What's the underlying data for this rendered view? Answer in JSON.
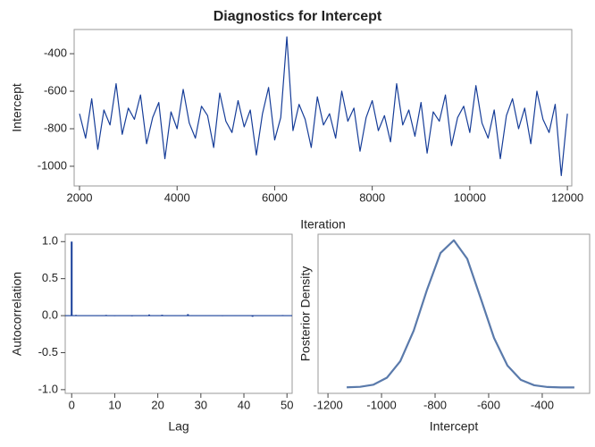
{
  "title": "Diagnostics for Intercept",
  "chart_data": [
    {
      "type": "line",
      "xlabel": "Iteration",
      "ylabel": "Intercept",
      "color": "#163d98",
      "x": [
        2000,
        2125,
        2250,
        2375,
        2500,
        2625,
        2750,
        2875,
        3000,
        3125,
        3250,
        3375,
        3500,
        3625,
        3750,
        3875,
        4000,
        4125,
        4250,
        4375,
        4500,
        4625,
        4750,
        4875,
        5000,
        5125,
        5250,
        5375,
        5500,
        5625,
        5750,
        5875,
        6000,
        6125,
        6250,
        6375,
        6500,
        6625,
        6750,
        6875,
        7000,
        7125,
        7250,
        7375,
        7500,
        7625,
        7750,
        7875,
        8000,
        8125,
        8250,
        8375,
        8500,
        8625,
        8750,
        8875,
        9000,
        9125,
        9250,
        9375,
        9500,
        9625,
        9750,
        9875,
        10000,
        10125,
        10250,
        10375,
        10500,
        10625,
        10750,
        10875,
        11000,
        11125,
        11250,
        11375,
        11500,
        11625,
        11750,
        11875,
        12000
      ],
      "values": [
        -720,
        -850,
        -640,
        -910,
        -700,
        -780,
        -560,
        -830,
        -690,
        -750,
        -620,
        -880,
        -740,
        -660,
        -960,
        -710,
        -800,
        -590,
        -770,
        -850,
        -680,
        -730,
        -900,
        -610,
        -760,
        -820,
        -650,
        -790,
        -700,
        -940,
        -720,
        -580,
        -860,
        -740,
        -310,
        -810,
        -670,
        -750,
        -900,
        -630,
        -780,
        -720,
        -850,
        -600,
        -760,
        -690,
        -920,
        -740,
        -650,
        -810,
        -730,
        -870,
        -560,
        -780,
        -700,
        -840,
        -660,
        -930,
        -710,
        -760,
        -620,
        -890,
        -740,
        -680,
        -820,
        -570,
        -770,
        -850,
        -700,
        -960,
        -730,
        -640,
        -800,
        -690,
        -880,
        -600,
        -750,
        -820,
        -670,
        -1050,
        -720
      ],
      "xlim": [
        1890,
        12090
      ],
      "xticks": [
        2000,
        4000,
        6000,
        8000,
        10000,
        12000
      ],
      "ylim": [
        -1105,
        -271
      ],
      "yticks": [
        -1000,
        -800,
        -600,
        -400
      ]
    },
    {
      "type": "needle",
      "xlabel": "Lag",
      "ylabel": "Autocorrelation",
      "color": "#163d98",
      "x": [
        0,
        1,
        2,
        3,
        4,
        5,
        6,
        7,
        8,
        9,
        10,
        11,
        12,
        13,
        14,
        15,
        16,
        17,
        18,
        19,
        20,
        21,
        22,
        23,
        24,
        25,
        26,
        27,
        28,
        29,
        30,
        31,
        32,
        33,
        34,
        35,
        36,
        37,
        38,
        39,
        40,
        41,
        42,
        43,
        44,
        45,
        46,
        47,
        48,
        49,
        50
      ],
      "values": [
        1,
        0.01,
        0,
        -0.005,
        0.002,
        0,
        0.004,
        -0.003,
        0.01,
        0,
        -0.006,
        0.003,
        0,
        0.005,
        -0.008,
        0,
        0.002,
        -0.004,
        0.015,
        0,
        0.003,
        0.012,
        -0.002,
        0,
        0.004,
        -0.005,
        0,
        0.02,
        0.003,
        -0.004,
        0,
        0.006,
        -0.003,
        0,
        0.002,
        -0.006,
        0.004,
        0,
        -0.002,
        0.005,
        0,
        0.003,
        -0.015,
        0,
        0.004,
        -0.003,
        0.002,
        0,
        -0.004,
        0.008,
        0
      ],
      "xlim": [
        -1.5,
        51.2
      ],
      "xticks": [
        0,
        10,
        20,
        30,
        40,
        50
      ],
      "ylim": [
        -1.05,
        1.1
      ],
      "yticks": [
        {
          "value": -1,
          "label": "-1.0"
        },
        -0.5,
        {
          "value": 0,
          "label": "0.0"
        },
        0.5,
        {
          "value": 1,
          "label": "1.0"
        }
      ]
    },
    {
      "type": "line",
      "xlabel": "Intercept",
      "ylabel": "Posterior Density",
      "color": "#5a7aab",
      "x": [
        -1130,
        -1080,
        -1030,
        -980,
        -930,
        -880,
        -830,
        -780,
        -730,
        -680,
        -630,
        -580,
        -530,
        -480,
        -430,
        -380,
        -330,
        -280
      ],
      "values": [
        0.0008,
        0.0045,
        0.019,
        0.066,
        0.178,
        0.385,
        0.664,
        0.912,
        0.999,
        0.873,
        0.607,
        0.336,
        0.149,
        0.052,
        0.015,
        0.003,
        0.0003,
        0
      ],
      "xlim": [
        -1237,
        -223
      ],
      "xticks": [
        -1200,
        -1000,
        -800,
        -600,
        -400
      ],
      "ylim": [
        -0.04,
        1.04
      ],
      "yticks": []
    }
  ]
}
